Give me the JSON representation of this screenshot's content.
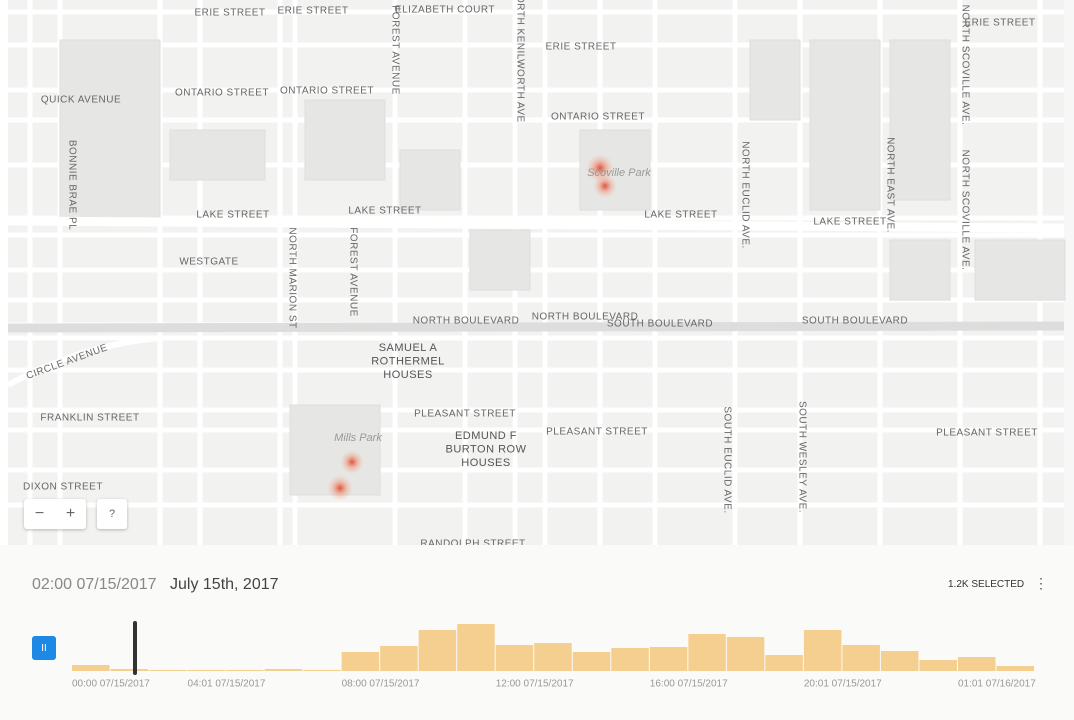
{
  "map": {
    "streets": [
      "ERIE STREET",
      "ERIE STREET",
      "ELIZABETH COURT",
      "ERIE STREET",
      "ERIE STREET",
      "QUICK AVENUE",
      "ONTARIO STREET",
      "ONTARIO STREET",
      "ONTARIO STREET",
      "LAKE STREET",
      "LAKE STREET",
      "LAKE STREET",
      "LAKE STREET",
      "WESTGATE",
      "NORTH BOULEVARD",
      "NORTH BOULEVARD",
      "SOUTH BOULEVARD",
      "SOUTH BOULEVARD",
      "CIRCLE AVENUE",
      "FRANKLIN STREET",
      "PLEASANT STREET",
      "PLEASANT STREET",
      "PLEASANT STREET",
      "DIXON STREET",
      "RANDOLPH STREET",
      "FOREST AVENUE",
      "NORTH KENILWORTH AVE",
      "NORTH MARION ST",
      "FOREST AVENUE",
      "BONNIE BRAE PL",
      "NORTH EUCLID AVE.",
      "NORTH EAST AVE.",
      "NORTH SCOVILLE AVE.",
      "NORTH SCOVILLE AVE.",
      "SOUTH EUCLID AVE.",
      "SOUTH WESLEY AVE."
    ],
    "places": [
      [
        "SAMUEL A",
        "ROTHERMEL",
        "HOUSES"
      ],
      [
        "EDMUND F",
        "BURTON ROW",
        "HOUSES"
      ]
    ],
    "parks": [
      "Scoville Park",
      "Mills Park"
    ],
    "controls": {
      "zoom_out": "−",
      "zoom_in": "+",
      "help": "?"
    }
  },
  "timeline": {
    "current_time": "02:00 07/15/2017",
    "date": "July 15th, 2017",
    "selected": "1.2K SELECTED",
    "menu": "⋮",
    "play": "II",
    "counts": [
      6,
      2,
      1,
      1,
      1,
      2,
      1,
      19,
      25,
      41,
      47,
      26,
      28,
      19,
      23,
      24,
      37,
      34,
      16,
      41,
      26,
      20,
      11,
      14,
      5
    ],
    "labels": [
      "00:00 07/15/2017",
      "04:01 07/15/2017",
      "08:00 07/15/2017",
      "12:00 07/15/2017",
      "16:00 07/15/2017",
      "20:01 07/15/2017",
      "01:01 07/16/2017"
    ]
  }
}
